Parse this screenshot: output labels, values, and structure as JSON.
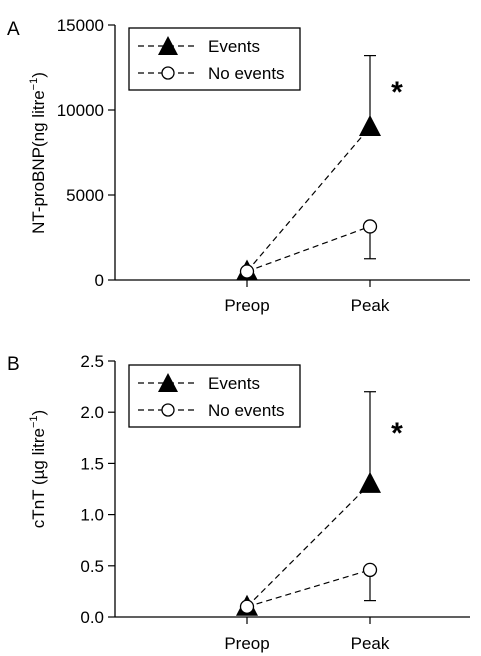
{
  "chart_data": [
    {
      "type": "line",
      "panel_label": "A",
      "categories": [
        "Preop",
        "Peak"
      ],
      "ylabel_main": "NT-proBNP(ng litre",
      "ylabel_sup": "−1",
      "ylabel_end": ")",
      "ylim": [
        0,
        15000
      ],
      "yticks": [
        "0",
        "5000",
        "10000",
        "15000"
      ],
      "ytick_values": [
        0,
        5000,
        10000,
        15000
      ],
      "series": [
        {
          "name": "Events",
          "marker": "filled-triangle",
          "values": [
            500,
            9000
          ],
          "error_upper": [
            null,
            13200
          ]
        },
        {
          "name": "No events",
          "marker": "open-circle",
          "values": [
            500,
            3150
          ],
          "error_lower": [
            null,
            1250
          ]
        }
      ],
      "annotation": "*"
    },
    {
      "type": "line",
      "panel_label": "B",
      "categories": [
        "Preop",
        "Peak"
      ],
      "ylabel_main": "cTnT (µg litre",
      "ylabel_sup": "−1",
      "ylabel_end": ")",
      "ylim": [
        0,
        2.5
      ],
      "yticks": [
        "0.0",
        "0.5",
        "1.0",
        "1.5",
        "2.0",
        "2.5"
      ],
      "ytick_values": [
        0,
        0.5,
        1.0,
        1.5,
        2.0,
        2.5
      ],
      "series": [
        {
          "name": "Events",
          "marker": "filled-triangle",
          "values": [
            0.1,
            1.3
          ],
          "error_upper": [
            null,
            2.2
          ]
        },
        {
          "name": "No events",
          "marker": "open-circle",
          "values": [
            0.1,
            0.46
          ],
          "error_lower": [
            null,
            0.16
          ]
        }
      ],
      "annotation": "*"
    }
  ]
}
